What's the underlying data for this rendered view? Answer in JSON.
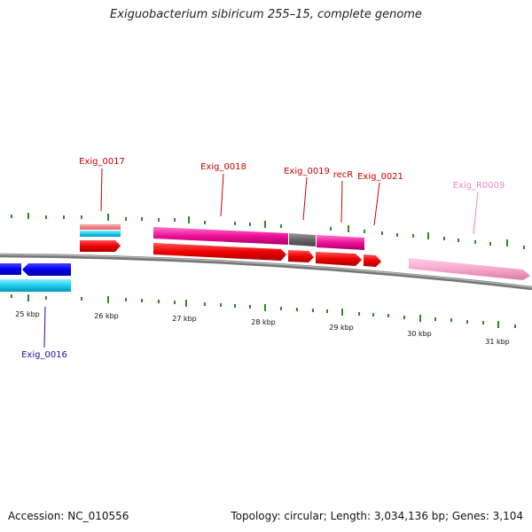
{
  "title": "Exiguobacterium sibiricum 255–15, complete genome",
  "footer": {
    "accession": "Accession: NC_010556",
    "stats": "Topology: circular; Length: 3,034,136 bp; Genes: 3,104"
  },
  "colors": {
    "backbone": "#888888",
    "tick": "#2a8a2a",
    "label_red": "#cc0000",
    "label_blue": "#1111aa",
    "label_pink": "#ee88bb"
  },
  "kbp_labels": [
    "25 kbp",
    "26 kbp",
    "27 kbp",
    "28 kbp",
    "29 kbp",
    "30 kbp",
    "31 kbp"
  ],
  "gene_labels": [
    {
      "id": "Exig_0017",
      "text": "Exig_0017"
    },
    {
      "id": "Exig_0018",
      "text": "Exig_0018"
    },
    {
      "id": "Exig_0019",
      "text": "Exig_0019"
    },
    {
      "id": "recR",
      "text": "recR"
    },
    {
      "id": "Exig_0021",
      "text": "Exig_0021"
    },
    {
      "id": "Exig_R0009",
      "text": "Exig_R0009"
    },
    {
      "id": "Exig_0016",
      "text": "Exig_0016"
    }
  ]
}
